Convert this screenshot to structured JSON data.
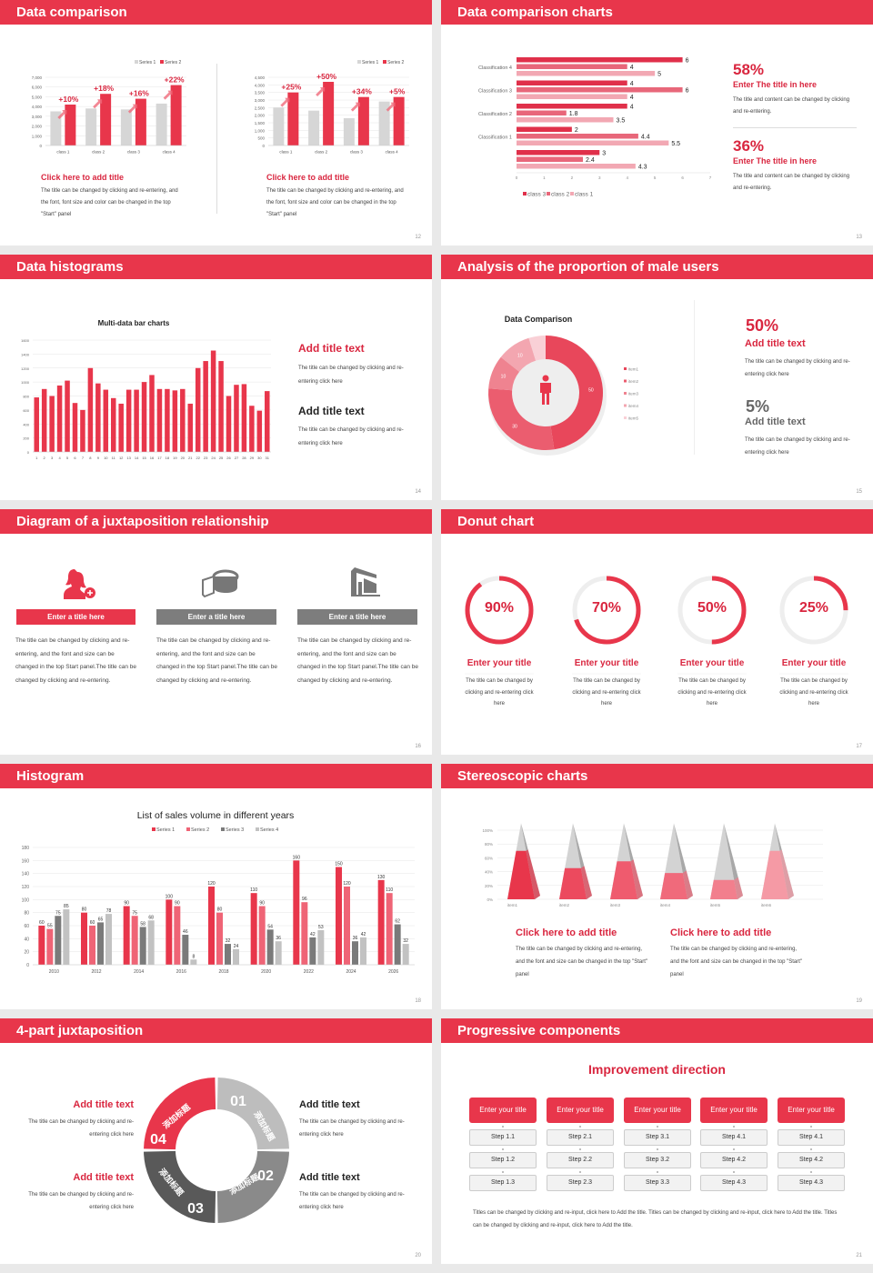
{
  "colors": {
    "accent": "#e8364b",
    "text_red": "#d9263f",
    "gray_dark": "#595959",
    "gray": "#8a8a8a",
    "gray_light": "#bdbdbd"
  },
  "slides": [
    {
      "title": "Data comparison",
      "page": "12",
      "blocks": [
        {
          "heading": "Click here to add title",
          "body": "The title can be changed by clicking and re-entering, and the font, font size and color can be changed in the top \"Start\" panel"
        },
        {
          "heading": "Click here to add title",
          "body": "The title can be changed by clicking and re-entering, and the font, font size and color can be changed in the top \"Start\" panel"
        }
      ]
    },
    {
      "title": "Data comparison charts",
      "page": "13",
      "stats": [
        {
          "value": "58%",
          "heading": "Enter The title in here",
          "body": "The title and content can be changed by clicking and re-entering."
        },
        {
          "value": "36%",
          "heading": "Enter The title in here",
          "body": "The title and content can be changed by clicking and re-entering."
        }
      ]
    },
    {
      "title": "Data histograms",
      "page": "14",
      "blocks": [
        {
          "heading": "Add title text",
          "body": "The title can be changed by clicking and re-entering click here"
        },
        {
          "heading": "Add title text",
          "body": "The title can be changed by clicking and re-entering click here"
        }
      ]
    },
    {
      "title": "Analysis of the proportion of male users",
      "page": "15",
      "stats": [
        {
          "value": "50%",
          "heading": "Add title text",
          "body": "The title can be changed by clicking and re-entering click here"
        },
        {
          "value": "5%",
          "heading": "Add title text",
          "body": "The title can be changed by clicking and re-entering click here"
        }
      ]
    },
    {
      "title": "Diagram of a juxtaposition relationship",
      "page": "16",
      "columns": [
        {
          "icon": "female-user-add-icon",
          "label": "Enter a title here",
          "body": "The title can be changed by clicking and re-entering, and the font and size can be changed in the top Start panel.The title can be changed by clicking and re-entering."
        },
        {
          "icon": "pie-chart-3d-icon",
          "label": "Enter a title here",
          "body": "The title can be changed by clicking and re-entering, and the font and size can be changed in the top Start panel.The title can be changed by clicking and re-entering."
        },
        {
          "icon": "building-chart-icon",
          "label": "Enter a title here",
          "body": "The title can be changed by clicking and re-entering, and the font and size can be changed in the top Start panel.The title can be changed by clicking and re-entering."
        }
      ]
    },
    {
      "title": "Donut chart",
      "page": "17",
      "rings": [
        {
          "value": "90%",
          "progress": 90,
          "heading": "Enter your title",
          "body": "The title can be changed by clicking and re-entering click here"
        },
        {
          "value": "70%",
          "progress": 70,
          "heading": "Enter your title",
          "body": "The title can be changed by clicking and re-entering click here"
        },
        {
          "value": "50%",
          "progress": 50,
          "heading": "Enter your title",
          "body": "The title can be changed by clicking and re-entering click here"
        },
        {
          "value": "25%",
          "progress": 25,
          "heading": "Enter your title",
          "body": "The title can be changed by clicking and re-entering click here"
        }
      ]
    },
    {
      "title": "Histogram",
      "page": "18"
    },
    {
      "title": "Stereoscopic charts",
      "page": "19",
      "blocks": [
        {
          "heading": "Click here to add title",
          "body": "The title can be changed by clicking and re-entering, and the font and size can be changed in the top \"Start\" panel"
        },
        {
          "heading": "Click here to add title",
          "body": "The title can be changed by clicking and re-entering, and the font and size can be changed in the top \"Start\" panel"
        }
      ]
    },
    {
      "title": "4-part juxtaposition",
      "page": "20",
      "segments": [
        {
          "num": "01",
          "label": "添加标题"
        },
        {
          "num": "02",
          "label": "添加标题"
        },
        {
          "num": "03",
          "label": "添加标题"
        },
        {
          "num": "04",
          "label": "添加标题"
        }
      ],
      "blocks": [
        {
          "heading": "Add title text",
          "body": "The title can be changed by clicking and re-entering click here"
        },
        {
          "heading": "Add title text",
          "body": "The title can be changed by clicking and re-entering click here"
        },
        {
          "heading": "Add title text",
          "body": "The title can be changed by clicking and re-entering click here"
        },
        {
          "heading": "Add title text",
          "body": "The title can be changed by clicking and re-entering click here"
        }
      ]
    },
    {
      "title": "Progressive components",
      "page": "21",
      "heading": "Improvement direction",
      "columns": [
        {
          "label": "Enter your title",
          "steps": [
            "Step 1.1",
            "Step 1.2",
            "Step 1.3"
          ]
        },
        {
          "label": "Enter your title",
          "steps": [
            "Step 2.1",
            "Step 2.2",
            "Step 2.3"
          ]
        },
        {
          "label": "Enter your title",
          "steps": [
            "Step 3.1",
            "Step 3.2",
            "Step 3.3"
          ]
        },
        {
          "label": "Enter your title",
          "steps": [
            "Step 4.1",
            "Step 4.2",
            "Step 4.3"
          ]
        },
        {
          "label": "Enter your title",
          "steps": [
            "Step 4.1",
            "Step 4.2",
            "Step 4.3"
          ]
        }
      ],
      "body": "Titles can be changed by clicking and re-input, click here to Add the title. Titles can be changed by clicking and re-input, click here to Add the title. Titles can be changed by clicking and re-input, click here to Add the title."
    }
  ],
  "chart_data": [
    {
      "id": "c1",
      "type": "bar",
      "categories": [
        "class 1",
        "class 2",
        "class 3",
        "class 4"
      ],
      "ylim": [
        0,
        7000
      ],
      "yticks": [
        "0",
        "1,000",
        "2,000",
        "3,000",
        "4,000",
        "5,000",
        "6,000",
        "7,000"
      ],
      "series": [
        {
          "name": "Series 1",
          "color": "#d6d6d6",
          "values": [
            3500,
            3800,
            3700,
            4300
          ]
        },
        {
          "name": "Series 2",
          "color": "#e8364b",
          "values": [
            4200,
            5300,
            4800,
            6200
          ]
        }
      ],
      "annotations": [
        "+10%",
        "+18%",
        "+16%",
        "+22%"
      ],
      "legend": "top-right",
      "grid": true
    },
    {
      "id": "c2",
      "type": "bar",
      "categories": [
        "class 1",
        "class 2",
        "class 3",
        "class 4"
      ],
      "ylim": [
        0,
        4500
      ],
      "yticks": [
        "0",
        "500",
        "1,000",
        "1,500",
        "2,000",
        "2,500",
        "3,000",
        "3,500",
        "4,000",
        "4,500"
      ],
      "series": [
        {
          "name": "Series 1",
          "color": "#d6d6d6",
          "values": [
            2500,
            2300,
            1800,
            2900
          ]
        },
        {
          "name": "Series 2",
          "color": "#e8364b",
          "values": [
            3500,
            4200,
            3200,
            3200
          ]
        }
      ],
      "annotations": [
        "+25%",
        "+50%",
        "+34%",
        "+5%"
      ],
      "legend": "top-right",
      "grid": true
    },
    {
      "id": "c3",
      "type": "bar",
      "orientation": "horizontal",
      "categories": [
        "Classification 4",
        "Classification 3",
        "Classification 2",
        "Classification 1",
        ""
      ],
      "xlim": [
        0,
        7
      ],
      "xticks": [
        "0",
        "1",
        "2",
        "3",
        "4",
        "5",
        "6",
        "7"
      ],
      "series": [
        {
          "name": "class 3",
          "color": "#e0304a",
          "values": [
            6,
            4,
            4,
            2,
            3
          ]
        },
        {
          "name": "class 2",
          "color": "#e8677a",
          "values": [
            4,
            6,
            1.8,
            4.4,
            2.4
          ]
        },
        {
          "name": "class 1",
          "color": "#f2a8b3",
          "values": [
            5,
            4,
            3.5,
            5.5,
            4.3
          ]
        }
      ],
      "legend": "bottom",
      "data_labels": true
    },
    {
      "id": "c4",
      "type": "bar",
      "title": "Multi-data bar charts",
      "categories": [
        "1",
        "2",
        "3",
        "4",
        "5",
        "6",
        "7",
        "8",
        "9",
        "10",
        "11",
        "12",
        "13",
        "14",
        "15",
        "16",
        "17",
        "18",
        "19",
        "20",
        "21",
        "22",
        "23",
        "24",
        "25",
        "26",
        "27",
        "28",
        "29",
        "30",
        "31"
      ],
      "ylim": [
        0,
        1600
      ],
      "yticks": [
        "0",
        "200",
        "400",
        "600",
        "800",
        "1000",
        "1200",
        "1400",
        "1600"
      ],
      "series": [
        {
          "color": "#e8364b",
          "values": [
            780,
            900,
            800,
            950,
            1020,
            700,
            600,
            1200,
            980,
            890,
            770,
            690,
            890,
            890,
            1000,
            1100,
            900,
            900,
            880,
            900,
            690,
            1200,
            1300,
            1450,
            1300,
            800,
            960,
            970,
            660,
            590,
            870
          ]
        }
      ],
      "grid": true
    },
    {
      "id": "c5",
      "type": "pie",
      "title": "Data Comparison",
      "donut": true,
      "categories": [
        "item1",
        "item2",
        "item3",
        "item4",
        "item5"
      ],
      "values": [
        50,
        30,
        10,
        10,
        5
      ],
      "labels": [
        "50",
        "30",
        "10",
        "10",
        ""
      ],
      "colors": [
        "#e8475b",
        "#eb5d6f",
        "#ef8390",
        "#f3a6b0",
        "#f9d0d6"
      ],
      "legend": "right"
    },
    {
      "id": "c6",
      "type": "bar",
      "title": "List of sales volume in different years",
      "categories": [
        "2010",
        "2012",
        "2014",
        "2016",
        "2018",
        "2020",
        "2022",
        "2024",
        "2026"
      ],
      "ylim": [
        0,
        180
      ],
      "yticks": [
        "0",
        "20",
        "40",
        "60",
        "80",
        "100",
        "120",
        "140",
        "160",
        "180"
      ],
      "series": [
        {
          "name": "Series 1",
          "color": "#e8364b",
          "values": [
            60,
            80,
            90,
            100,
            120,
            110,
            160,
            150,
            130
          ]
        },
        {
          "name": "Series 2",
          "color": "#ef6476",
          "values": [
            55,
            60,
            75,
            90,
            80,
            90,
            96,
            120,
            110
          ]
        },
        {
          "name": "Series 3",
          "color": "#7a7a7a",
          "values": [
            75,
            65,
            58,
            46,
            32,
            54,
            42,
            36,
            62
          ]
        },
        {
          "name": "Series 4",
          "color": "#c2c2c2",
          "values": [
            85,
            78,
            68,
            8,
            24,
            36,
            53,
            42,
            32
          ]
        }
      ],
      "legend": "top",
      "data_labels": true,
      "grid": true
    },
    {
      "id": "c7",
      "type": "bar",
      "style": "3d-pyramid",
      "categories": [
        "item1",
        "item2",
        "item3",
        "item4",
        "item5",
        "item6"
      ],
      "ylim": [
        0,
        100
      ],
      "yticks": [
        "0%",
        "20%",
        "40%",
        "60%",
        "80%",
        "100%"
      ],
      "values": [
        70,
        45,
        55,
        38,
        28,
        70
      ],
      "colors": [
        "#e8364b",
        "#ec4a5e",
        "#ef5b6e",
        "#f06a7b",
        "#f27f8d",
        "#f59aa5"
      ],
      "grid": true
    }
  ]
}
